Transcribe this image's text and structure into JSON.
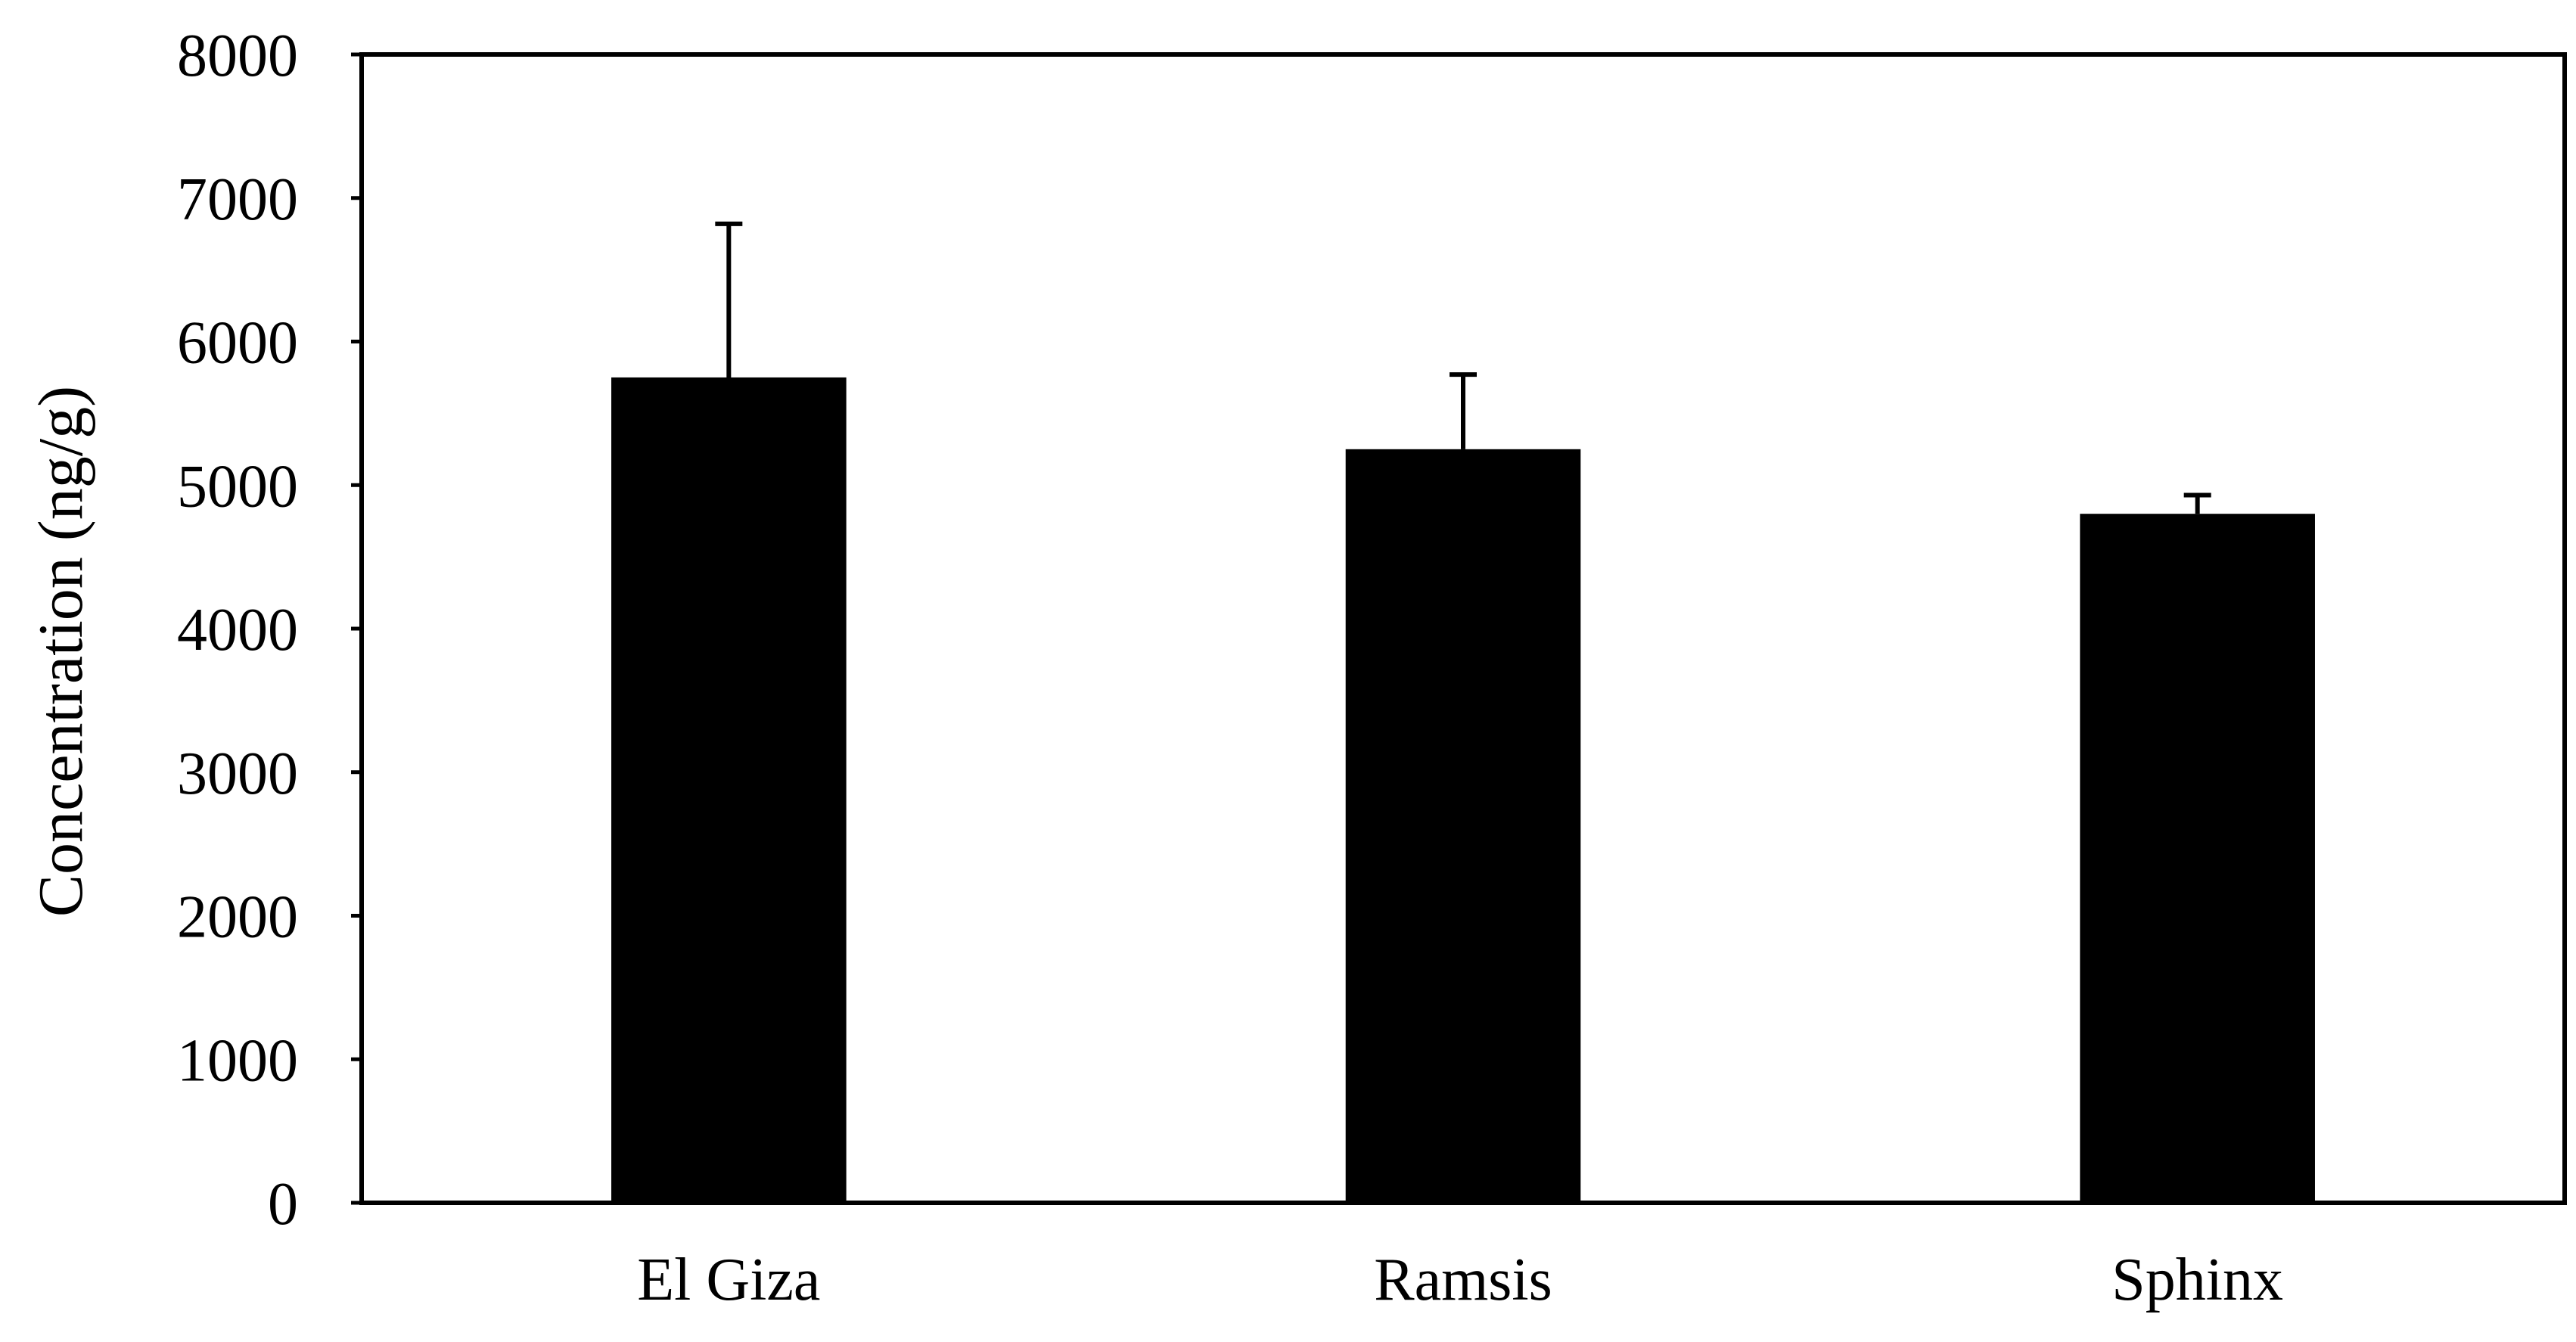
{
  "chart_data": {
    "type": "bar",
    "title": "",
    "xlabel": "",
    "ylabel": "Concentration (ng/g)",
    "categories": [
      "El Giza",
      "Ramsis",
      "Sphinx"
    ],
    "values": [
      5750,
      5250,
      4800
    ],
    "error_upper": [
      1070,
      520,
      130
    ],
    "ylim": [
      0,
      8000
    ],
    "yticks": [
      0,
      1000,
      2000,
      3000,
      4000,
      5000,
      6000,
      7000,
      8000
    ],
    "grid": false,
    "legend": "none",
    "bar_color": "#000000"
  }
}
